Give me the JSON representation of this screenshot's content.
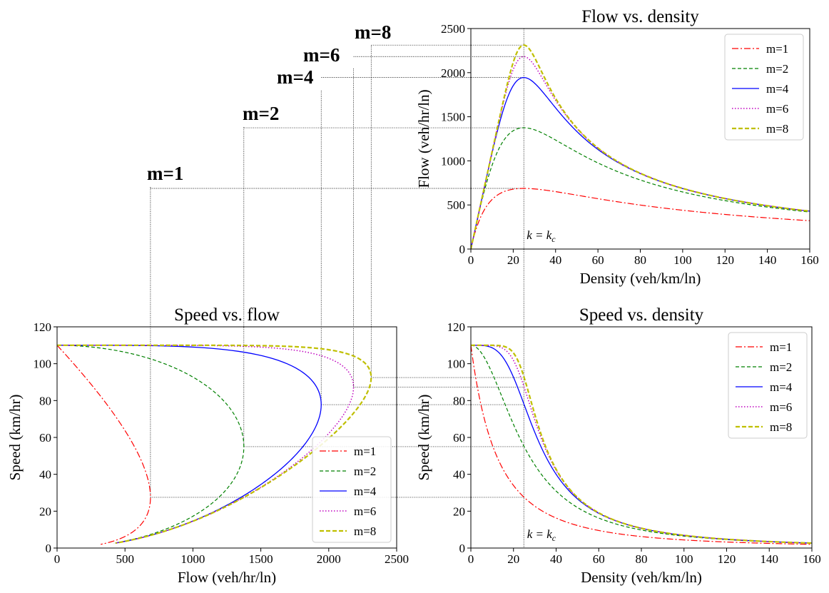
{
  "figure": {
    "series_style": [
      {
        "name": "m=1",
        "m": 1,
        "color": "#ff0000",
        "dash": "9,3,2,3",
        "width": 1.2
      },
      {
        "name": "m=2",
        "m": 2,
        "color": "#008000",
        "dash": "5,3",
        "width": 1.2
      },
      {
        "name": "m=4",
        "m": 4,
        "color": "#0000ff",
        "dash": "",
        "width": 1.3
      },
      {
        "name": "m=6",
        "m": 6,
        "color": "#bf00bf",
        "dash": "1.5,2.5",
        "width": 1.5
      },
      {
        "name": "m=8",
        "m": 8,
        "color": "#bfbf00",
        "dash": "6,3",
        "width": 2.2
      }
    ],
    "model": {
      "free_flow_speed": 110,
      "critical_density": 25
    },
    "capacity_labels": [
      "m=1",
      "m=2",
      "m=4",
      "m=6",
      "m=8"
    ],
    "kc_label": "k = kc",
    "kc_label_main": "k = k",
    "kc_label_sub": "c"
  },
  "chart_data": [
    {
      "id": "flow-density",
      "type": "line",
      "title": "Flow vs. density",
      "xlabel": "Density (veh/km/ln)",
      "ylabel": "Flow (veh/hr/ln)",
      "xlim": [
        0,
        160
      ],
      "ylim": [
        0,
        2500
      ],
      "xticks": [
        "0",
        "20",
        "40",
        "60",
        "80",
        "100",
        "120",
        "140",
        "160"
      ],
      "yticks": [
        "0",
        "500",
        "1000",
        "1500",
        "2000",
        "2500"
      ],
      "legend_position": "top-right",
      "series": [
        {
          "name": "m=1",
          "x": [
            0,
            10,
            20,
            25,
            40,
            60,
            80,
            100,
            120,
            140,
            160
          ],
          "y": [
            0,
            430,
            675,
            688,
            620,
            520,
            450,
            400,
            365,
            340,
            320
          ]
        },
        {
          "name": "m=2",
          "x": [
            0,
            10,
            20,
            25,
            40,
            60,
            80,
            100,
            120,
            140,
            160
          ],
          "y": [
            0,
            920,
            1330,
            1375,
            1100,
            800,
            640,
            540,
            480,
            440,
            410
          ]
        },
        {
          "name": "m=4",
          "x": [
            0,
            10,
            20,
            25,
            40,
            60,
            80,
            100,
            120,
            140,
            160
          ],
          "y": [
            0,
            1090,
            1860,
            1945,
            1400,
            950,
            740,
            620,
            530,
            470,
            430
          ]
        },
        {
          "name": "m=6",
          "x": [
            0,
            10,
            20,
            25,
            40,
            60,
            80,
            100,
            120,
            140,
            160
          ],
          "y": [
            0,
            1100,
            2050,
            2180,
            1470,
            975,
            755,
            630,
            535,
            475,
            435
          ]
        },
        {
          "name": "m=8",
          "x": [
            0,
            10,
            20,
            25,
            40,
            60,
            80,
            100,
            120,
            140,
            160
          ],
          "y": [
            0,
            1100,
            2150,
            2310,
            1500,
            985,
            760,
            632,
            538,
            477,
            437
          ]
        }
      ]
    },
    {
      "id": "speed-flow",
      "type": "line",
      "title": "Speed vs. flow",
      "xlabel": "Flow (veh/hr/ln)",
      "ylabel": "Speed (km/hr)",
      "xlim": [
        0,
        2500
      ],
      "ylim": [
        0,
        120
      ],
      "xticks": [
        "0",
        "500",
        "1000",
        "1500",
        "2000",
        "2500"
      ],
      "yticks": [
        "0",
        "20",
        "40",
        "60",
        "80",
        "100",
        "120"
      ],
      "legend_position": "bottom-right",
      "series": [
        {
          "name": "m=1",
          "x": [
            0,
            430,
            688,
            620,
            400,
            320
          ],
          "y": [
            110,
            55,
            27.5,
            15.5,
            4,
            2
          ]
        },
        {
          "name": "m=2",
          "x": [
            0,
            920,
            1375,
            1100,
            640,
            410
          ],
          "y": [
            110,
            92,
            55,
            27.5,
            8,
            2.6
          ]
        },
        {
          "name": "m=4",
          "x": [
            0,
            1090,
            1945,
            1400,
            740,
            430
          ],
          "y": [
            110,
            109,
            78,
            35,
            9,
            2.7
          ]
        },
        {
          "name": "m=6",
          "x": [
            0,
            1100,
            2180,
            1470,
            755,
            435
          ],
          "y": [
            110,
            110,
            87,
            37,
            9.4,
            2.7
          ]
        },
        {
          "name": "m=8",
          "x": [
            0,
            1100,
            2310,
            1500,
            760,
            437
          ],
          "y": [
            110,
            110,
            92.5,
            37.5,
            9.5,
            2.7
          ]
        }
      ]
    },
    {
      "id": "speed-density",
      "type": "line",
      "title": "Speed vs. density",
      "xlabel": "Density (veh/km/ln)",
      "ylabel": "Speed (km/hr)",
      "xlim": [
        0,
        160
      ],
      "ylim": [
        0,
        120
      ],
      "xticks": [
        "0",
        "20",
        "40",
        "60",
        "80",
        "100",
        "120",
        "140",
        "160"
      ],
      "yticks": [
        "0",
        "20",
        "40",
        "60",
        "80",
        "100",
        "120"
      ],
      "legend_position": "top-right",
      "series": [
        {
          "name": "m=1",
          "x": [
            0,
            10,
            20,
            25,
            40,
            60,
            80,
            100,
            120,
            140,
            160
          ],
          "y": [
            110,
            48,
            33,
            27.5,
            15.5,
            8.7,
            5.6,
            4,
            3,
            2.4,
            2
          ]
        },
        {
          "name": "m=2",
          "x": [
            0,
            10,
            20,
            25,
            40,
            60,
            80,
            100,
            120,
            140,
            160
          ],
          "y": [
            110,
            98,
            66,
            55,
            27.5,
            13.3,
            8,
            5.4,
            4,
            3.1,
            2.6
          ]
        },
        {
          "name": "m=4",
          "x": [
            0,
            10,
            20,
            25,
            40,
            60,
            80,
            100,
            120,
            140,
            160
          ],
          "y": [
            110,
            109,
            93,
            78,
            35,
            15.8,
            9.2,
            6.2,
            4.4,
            3.4,
            2.7
          ]
        },
        {
          "name": "m=6",
          "x": [
            0,
            10,
            20,
            25,
            40,
            60,
            80,
            100,
            120,
            140,
            160
          ],
          "y": [
            110,
            110,
            102,
            87,
            36.8,
            16.2,
            9.4,
            6.3,
            4.5,
            3.4,
            2.7
          ]
        },
        {
          "name": "m=8",
          "x": [
            0,
            10,
            20,
            25,
            40,
            60,
            80,
            100,
            120,
            140,
            160
          ],
          "y": [
            110,
            110,
            107,
            92.5,
            37.5,
            16.4,
            9.5,
            6.3,
            4.5,
            3.4,
            2.7
          ]
        }
      ]
    }
  ]
}
